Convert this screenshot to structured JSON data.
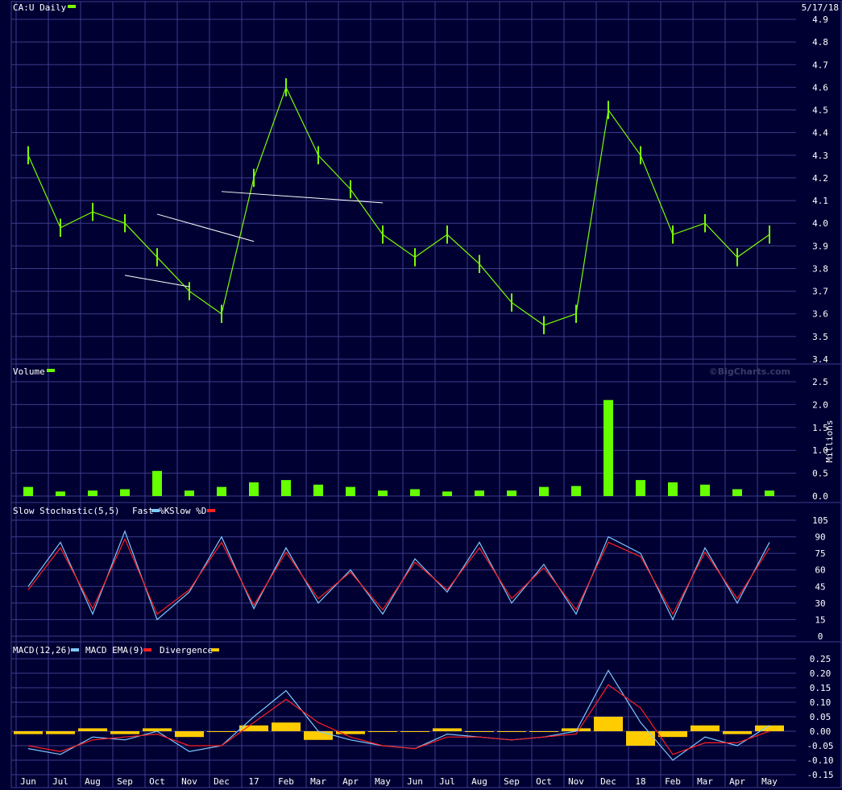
{
  "header": {
    "title": "CA:U Daily",
    "date": "5/17/18",
    "watermark": "©BigCharts.com"
  },
  "colors": {
    "background": "#000033",
    "grid": "#3c3c8c",
    "price": "#7cfc00",
    "volume": "#66ff00",
    "fast_k": "#7ec8ff",
    "slow_d": "#ff2020",
    "macd": "#7ec8ff",
    "macd_ema": "#ff2020",
    "divergence": "#ffcc00",
    "trendline": "#ffffff"
  },
  "x_axis": {
    "labels": [
      "Jun",
      "Jul",
      "Aug",
      "Sep",
      "Oct",
      "Nov",
      "Dec",
      "17",
      "Feb",
      "Mar",
      "Apr",
      "May",
      "Jun",
      "Jul",
      "Aug",
      "Sep",
      "Oct",
      "Nov",
      "Dec",
      "18",
      "Feb",
      "Mar",
      "Apr",
      "May"
    ]
  },
  "chart_data": [
    {
      "type": "bar",
      "subtype": "ohlc",
      "name": "price",
      "legend": "CA:U Daily",
      "ylim": [
        3.4,
        4.9
      ],
      "yticks": [
        "4.9",
        "4.8",
        "4.7",
        "4.6",
        "4.5",
        "4.4",
        "4.3",
        "4.2",
        "4.1",
        "4.0",
        "3.9",
        "3.8",
        "3.7",
        "3.6",
        "3.5",
        "3.4"
      ],
      "x": [
        "Jun",
        "Jul",
        "Aug",
        "Sep",
        "Oct",
        "Nov",
        "Dec",
        "17",
        "Feb",
        "Mar",
        "Apr",
        "May",
        "Jun",
        "Jul",
        "Aug",
        "Sep",
        "Oct",
        "Nov",
        "Dec",
        "18",
        "Feb",
        "Mar",
        "Apr",
        "May"
      ],
      "values": [
        4.3,
        3.98,
        4.05,
        4.0,
        3.85,
        3.7,
        3.6,
        4.2,
        4.6,
        4.3,
        4.15,
        3.95,
        3.85,
        3.95,
        3.82,
        3.65,
        3.55,
        3.6,
        4.5,
        4.3,
        3.95,
        4.0,
        3.85,
        3.95
      ],
      "trendlines": [
        {
          "x": [
            "Oct",
            "Jan"
          ],
          "values": [
            4.04,
            3.92
          ]
        },
        {
          "x": [
            "Sep",
            "Nov"
          ],
          "values": [
            3.77,
            3.72
          ]
        },
        {
          "x": [
            "Dec",
            "May"
          ],
          "values": [
            4.14,
            4.09
          ]
        }
      ],
      "grid": true
    },
    {
      "type": "bar",
      "name": "volume",
      "legend": "Volume",
      "ylabel": "Millions",
      "ylim": [
        0,
        2.5
      ],
      "yticks": [
        "2.5",
        "2.0",
        "1.5",
        "1.0",
        "0.5",
        "0.0"
      ],
      "values": [
        0.2,
        0.1,
        0.12,
        0.15,
        0.55,
        0.12,
        0.2,
        0.3,
        0.35,
        0.25,
        0.2,
        0.12,
        0.15,
        0.1,
        0.12,
        0.12,
        0.2,
        0.22,
        2.1,
        0.35,
        0.3,
        0.25,
        0.15,
        0.12
      ],
      "grid": true
    },
    {
      "type": "line",
      "name": "stochastic",
      "legend": "Slow Stochastic(5,5)",
      "ylim": [
        0,
        105
      ],
      "yticks": [
        "105",
        "90",
        "75",
        "60",
        "45",
        "30",
        "15",
        "0"
      ],
      "series": [
        {
          "name": "Fast %K",
          "values": [
            45,
            85,
            20,
            95,
            15,
            40,
            90,
            25,
            80,
            30,
            60,
            20,
            70,
            40,
            85,
            30,
            65,
            20,
            90,
            75,
            15,
            80,
            30,
            85
          ]
        },
        {
          "name": "Slow %D",
          "values": [
            42,
            80,
            25,
            88,
            20,
            42,
            85,
            28,
            76,
            34,
            58,
            24,
            67,
            42,
            80,
            34,
            62,
            24,
            85,
            72,
            20,
            76,
            34,
            80
          ]
        }
      ],
      "grid": true
    },
    {
      "type": "line",
      "name": "macd",
      "legend": "MACD(12,26)",
      "ylim": [
        -0.15,
        0.25
      ],
      "yticks": [
        "0.25",
        "0.20",
        "0.15",
        "0.10",
        "0.05",
        "0.00",
        "-0.05",
        "-0.10",
        "-0.15"
      ],
      "series": [
        {
          "name": "MACD",
          "values": [
            -0.06,
            -0.08,
            -0.02,
            -0.03,
            0.0,
            -0.07,
            -0.05,
            0.05,
            0.14,
            0.0,
            -0.03,
            -0.05,
            -0.06,
            -0.01,
            -0.02,
            -0.03,
            -0.02,
            0.0,
            0.21,
            0.03,
            -0.1,
            -0.02,
            -0.05,
            0.02
          ]
        },
        {
          "name": "MACD EMA(9)",
          "values": [
            -0.05,
            -0.07,
            -0.03,
            -0.02,
            -0.01,
            -0.05,
            -0.05,
            0.03,
            0.11,
            0.03,
            -0.02,
            -0.05,
            -0.06,
            -0.02,
            -0.02,
            -0.03,
            -0.02,
            -0.01,
            0.16,
            0.08,
            -0.08,
            -0.04,
            -0.04,
            0.0
          ]
        },
        {
          "name": "Divergence",
          "values": [
            -0.01,
            -0.01,
            0.01,
            -0.01,
            0.01,
            -0.02,
            0.0,
            0.02,
            0.03,
            -0.03,
            -0.01,
            0.0,
            0.0,
            0.01,
            0.0,
            0.0,
            0.0,
            0.01,
            0.05,
            -0.05,
            -0.02,
            0.02,
            -0.01,
            0.02
          ]
        }
      ],
      "legend_items": [
        "MACD EMA(9)",
        "Divergence"
      ],
      "grid": true
    }
  ]
}
